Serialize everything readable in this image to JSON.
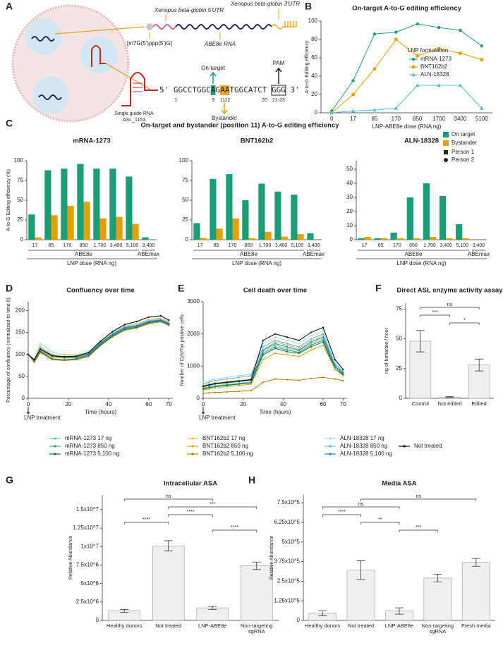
{
  "diagram": {
    "label": "A",
    "utr5": "Xenopus beta-globin 5'UTR",
    "utr3": "Xenopus beta-globin 3'UTR",
    "cap": "[m7G(5')ppp(5')G]",
    "rna": "ABE8e RNA",
    "sgrna": [
      "Single guide RNA",
      "ASL_1153"
    ],
    "sequence": "5' GGCCTGGCAGAATGGCATCT GGG 3'",
    "positions": [
      "1",
      "9",
      "11",
      "12",
      "20",
      "21-23"
    ],
    "on_target": "On-target",
    "bystander": "Bystander",
    "pam": "PAM"
  },
  "panel_c": {
    "label": "C",
    "title": "On-target and bystander (position 11)  A-to-G editing efficiency",
    "donors": [
      "Person 1",
      "Person 2"
    ]
  },
  "chart_data": [
    {
      "type": "line",
      "label": "B",
      "title": "On-target A-to-G editing efficiency",
      "xlabel": "LNP-ABE8e dose (RNA ng)",
      "ylabel": "A-to-G Editing efficiency",
      "categories": [
        "0",
        "17",
        "85",
        "170",
        "850",
        "1700",
        "3400",
        "5100"
      ],
      "ylim": [
        0,
        100
      ],
      "yticks": [
        0,
        20,
        40,
        60,
        80,
        100
      ],
      "legend_title": "LNP formulation",
      "legend": "right",
      "series": [
        {
          "name": "mRNA-1273",
          "color": "#1a9e77",
          "marker": "circle",
          "values": [
            2,
            35,
            86,
            88,
            97,
            93,
            90,
            73
          ]
        },
        {
          "name": "BNT162b2",
          "color": "#e69f00",
          "marker": "square",
          "values": [
            0,
            20,
            48,
            80,
            62,
            70,
            65,
            58
          ]
        },
        {
          "name": "ALN-18328",
          "color": "#56b4e9",
          "marker": "triangle",
          "values": [
            0,
            2,
            3,
            5,
            30,
            30,
            30,
            5
          ]
        }
      ]
    },
    {
      "type": "grouped_bar",
      "title": "mRNA-1273",
      "ylabel": "A-to-G Editing efficiency (%)",
      "xlabel": "LNP dose (RNA ng)",
      "categories": [
        "17",
        "85",
        "170",
        "850",
        "1,700",
        "3,400",
        "5,100",
        "3,400"
      ],
      "groups": [
        {
          "label": "ABE8e",
          "count": 7
        },
        {
          "label": "ABEmax",
          "count": 1
        }
      ],
      "ylim": [
        0,
        100
      ],
      "yticks": [
        0,
        25,
        50,
        75,
        100
      ],
      "series": [
        {
          "name": "On target",
          "color": "#1a9e77",
          "values": [
            32,
            88,
            90,
            96,
            90,
            90,
            80,
            3
          ]
        },
        {
          "name": "Bystander",
          "color": "#e69f00",
          "values": [
            3,
            31,
            43,
            48,
            27,
            29,
            20,
            null
          ]
        }
      ]
    },
    {
      "type": "grouped_bar",
      "title": "BNT162b2",
      "xlabel": "LNP dose (RNA ng)",
      "categories": [
        "17",
        "85",
        "170",
        "850",
        "1,700",
        "3,400",
        "5,100",
        "3,400"
      ],
      "groups": [
        {
          "label": "ABE8e",
          "count": 7
        },
        {
          "label": "ABEmax",
          "count": 1
        }
      ],
      "ylim": [
        0,
        100
      ],
      "yticks": [
        0,
        25,
        50,
        75,
        100
      ],
      "series": [
        {
          "color": "#1a9e77",
          "values": [
            21,
            77,
            83,
            50,
            71,
            61,
            57,
            8
          ]
        },
        {
          "color": "#e69f00",
          "values": [
            2,
            14,
            27,
            2,
            10,
            4,
            7,
            null
          ]
        }
      ]
    },
    {
      "type": "grouped_bar",
      "title": "ALN-18328",
      "xlabel": "LNP dose (RNA ng)",
      "categories": [
        "17",
        "85",
        "170",
        "850",
        "1,700",
        "3,400",
        "5,100",
        "3,400"
      ],
      "groups": [
        {
          "label": "ABE8e",
          "count": 7
        },
        {
          "label": "ABEmax",
          "count": 1
        }
      ],
      "ylim": [
        0,
        56
      ],
      "yticks": [
        0,
        10,
        20,
        30,
        40,
        50
      ],
      "series": [
        {
          "color": "#1a9e77",
          "values": [
            1,
            1,
            5,
            30,
            40,
            31,
            11,
            0
          ]
        },
        {
          "color": "#e69f00",
          "values": [
            2,
            1,
            1,
            1,
            2,
            1,
            1,
            null
          ]
        }
      ]
    },
    {
      "type": "line",
      "label": "D",
      "title": "Confluency over time",
      "xlabel": "Time (hours)",
      "ylabel": "Percentage of confluency (normalized to time 0)",
      "annotation": "LNP treatment",
      "x": [
        0,
        3,
        6,
        12,
        18,
        24,
        30,
        36,
        42,
        48,
        54,
        60,
        66,
        70
      ],
      "xlim": [
        0,
        72
      ],
      "xticks": [
        0,
        20,
        40,
        60,
        70
      ],
      "ylim": [
        0,
        220
      ],
      "yticks": [
        0,
        50,
        100,
        150,
        200
      ],
      "series": [
        {
          "name": "mRNA-1273 17 ng",
          "color": "#66c2a5",
          "values": [
            100,
            86,
            112,
            96,
            94,
            95,
            102,
            127,
            147,
            162,
            166,
            176,
            180,
            172
          ]
        },
        {
          "name": "mRNA-1273 850 ng",
          "color": "#1b9e77",
          "values": [
            100,
            84,
            108,
            94,
            92,
            92,
            99,
            124,
            144,
            159,
            164,
            174,
            177,
            169
          ]
        },
        {
          "name": "mRNA-1273 5,100 ng",
          "color": "#0b6e50",
          "values": [
            100,
            83,
            106,
            90,
            88,
            90,
            97,
            122,
            142,
            157,
            162,
            172,
            176,
            168
          ]
        },
        {
          "name": "BNT162b2 17 ng",
          "color": "#f6b84a",
          "values": [
            100,
            88,
            118,
            100,
            98,
            98,
            104,
            130,
            150,
            165,
            170,
            180,
            182,
            175
          ]
        },
        {
          "name": "BNT162b2 850 ng",
          "color": "#e69f00",
          "values": [
            100,
            85,
            110,
            95,
            93,
            94,
            101,
            126,
            146,
            161,
            165,
            175,
            179,
            171
          ]
        },
        {
          "name": "BNT162b2 5,100 ng",
          "color": "#b07800",
          "values": [
            100,
            82,
            104,
            88,
            86,
            88,
            95,
            120,
            140,
            155,
            160,
            170,
            174,
            166
          ]
        },
        {
          "name": "ALN-18328 17 ng",
          "color": "#a6d4f2",
          "values": [
            100,
            90,
            125,
            105,
            100,
            100,
            106,
            131,
            150,
            164,
            168,
            178,
            181,
            173
          ]
        },
        {
          "name": "ALN-18328 850 ng",
          "color": "#56b4e9",
          "values": [
            100,
            87,
            115,
            98,
            95,
            96,
            102,
            127,
            147,
            162,
            166,
            176,
            179,
            172
          ]
        },
        {
          "name": "ALN-18328 5,100 ng",
          "color": "#2a7fb8",
          "values": [
            100,
            86,
            112,
            97,
            94,
            95,
            101,
            126,
            146,
            161,
            165,
            175,
            178,
            170
          ]
        },
        {
          "name": "Not treated",
          "color": "#000000",
          "values": [
            100,
            88,
            112,
            97,
            95,
            96,
            104,
            130,
            152,
            168,
            175,
            185,
            188,
            178
          ]
        }
      ]
    },
    {
      "type": "line",
      "label": "E",
      "title": "Cell death over time",
      "xlabel": "Time (hours)",
      "ylabel": "Number of CytoTox positive cells",
      "annotation": "LNP treatment",
      "x": [
        0,
        3,
        6,
        12,
        18,
        24,
        30,
        36,
        42,
        48,
        54,
        60,
        66,
        70
      ],
      "xlim": [
        0,
        72
      ],
      "xticks": [
        0,
        20,
        40,
        60,
        70
      ],
      "ylim": [
        0,
        3000
      ],
      "yticks": [
        0,
        1000,
        2000,
        3000
      ],
      "series": [
        {
          "color": "#66c2a5",
          "values": [
            320,
            360,
            390,
            430,
            470,
            510,
            1450,
            1650,
            1550,
            1480,
            1700,
            1850,
            1000,
            780
          ]
        },
        {
          "color": "#1b9e77",
          "values": [
            300,
            340,
            370,
            410,
            450,
            490,
            1400,
            1600,
            1500,
            1430,
            1650,
            1800,
            950,
            760
          ]
        },
        {
          "color": "#0b6e50",
          "values": [
            280,
            330,
            360,
            400,
            440,
            480,
            1350,
            1550,
            1450,
            1400,
            1600,
            1750,
            900,
            740
          ]
        },
        {
          "color": "#f6b84a",
          "values": [
            400,
            450,
            480,
            520,
            560,
            600,
            1500,
            1750,
            1650,
            1550,
            1800,
            1950,
            1050,
            820
          ]
        },
        {
          "color": "#e69f00",
          "values": [
            250,
            290,
            320,
            360,
            400,
            440,
            1200,
            1400,
            1350,
            1300,
            1500,
            1650,
            900,
            700
          ]
        },
        {
          "color": "#b07800",
          "values": [
            150,
            170,
            180,
            200,
            220,
            240,
            500,
            600,
            580,
            560,
            620,
            650,
            600,
            550
          ]
        },
        {
          "color": "#a6d4f2",
          "values": [
            500,
            550,
            600,
            650,
            700,
            750,
            1700,
            1900,
            1800,
            1700,
            1950,
            2100,
            1100,
            850
          ]
        },
        {
          "color": "#56b4e9",
          "values": [
            450,
            500,
            550,
            600,
            650,
            700,
            1600,
            1800,
            1700,
            1600,
            1850,
            2000,
            1050,
            830
          ]
        },
        {
          "color": "#2a7fb8",
          "values": [
            350,
            400,
            440,
            480,
            520,
            560,
            1500,
            1700,
            1600,
            1500,
            1750,
            1900,
            1000,
            800
          ]
        },
        {
          "color": "#000000",
          "values": [
            380,
            420,
            460,
            500,
            540,
            580,
            1800,
            2000,
            1900,
            1800,
            2050,
            2200,
            1200,
            900
          ]
        }
      ]
    },
    {
      "type": "bar",
      "label": "F",
      "title": "Direct ASL enzyme activity assay",
      "ylabel": "ng of fumarate / hour",
      "categories": [
        "Control",
        "Not edited",
        "Edited"
      ],
      "values": [
        48,
        1,
        28
      ],
      "errors": [
        9,
        0.5,
        5
      ],
      "color": "#efefef",
      "ylim": [
        0,
        80
      ],
      "yticks": [
        0,
        25,
        50,
        75
      ],
      "significance": [
        {
          "text": "ns",
          "between": [
            0,
            2
          ]
        },
        {
          "text": "***",
          "between": [
            0,
            1
          ]
        },
        {
          "text": "*",
          "between": [
            1,
            2
          ]
        }
      ]
    },
    {
      "type": "bar",
      "label": "G",
      "title": "Intracellular ASA",
      "ylabel": "Relative Abundance",
      "categories": [
        "Healthy donors",
        "Not treated",
        "LNP-ABE8e",
        "Non-targeting sgRNA"
      ],
      "values": [
        1300000,
        10100000,
        1700000,
        7400000
      ],
      "errors": [
        200000,
        700000,
        200000,
        500000
      ],
      "color": "#efefef",
      "ylim": [
        0,
        17000000
      ],
      "yticks": [
        0,
        {
          "value": 2500000,
          "label": "2.5x10^6"
        },
        {
          "value": 5000000,
          "label": "5x10^6"
        },
        {
          "value": 7500000,
          "label": "7.5x10^6"
        },
        {
          "value": 10000000,
          "label": "1x10^7"
        },
        {
          "value": 12500000,
          "label": "1.25x10^7"
        },
        {
          "value": 15000000,
          "label": "1.5x10^7"
        }
      ],
      "significance": [
        {
          "text": "ns",
          "between": [
            0,
            2
          ]
        },
        {
          "text": "***",
          "between": [
            1,
            3
          ]
        },
        {
          "text": "****",
          "between": [
            1,
            2
          ]
        },
        {
          "text": "****",
          "between": [
            0,
            1
          ]
        },
        {
          "text": "****",
          "between": [
            2,
            3
          ]
        }
      ]
    },
    {
      "type": "bar",
      "label": "H",
      "title": "Media ASA",
      "ylabel": "Relative Abundance",
      "categories": [
        "Healthy donors",
        "Not treated",
        "LNP-ABE8e",
        "Non-targeting sgRNA",
        "Fresh media"
      ],
      "values": [
        45000,
        320000,
        60000,
        270000,
        370000
      ],
      "errors": [
        15000,
        60000,
        20000,
        25000,
        25000
      ],
      "color": "#efefef",
      "ylim": [
        0,
        800000
      ],
      "yticks": [
        0,
        {
          "value": 125000,
          "label": "1.25x10^5"
        },
        {
          "value": 250000,
          "label": "2.5x10^5"
        },
        {
          "value": 375000,
          "label": "3.75x10^5"
        },
        {
          "value": 500000,
          "label": "5x10^5"
        },
        {
          "value": 625000,
          "label": "6.25x10^5"
        },
        {
          "value": 750000,
          "label": "7.5x10^5"
        }
      ],
      "significance": [
        {
          "text": "ns",
          "between": [
            1,
            4
          ]
        },
        {
          "text": "ns",
          "between": [
            0,
            2
          ]
        },
        {
          "text": "****",
          "between": [
            0,
            1
          ]
        },
        {
          "text": "**",
          "between": [
            1,
            2
          ]
        },
        {
          "text": "***",
          "between": [
            2,
            3
          ]
        }
      ]
    }
  ]
}
